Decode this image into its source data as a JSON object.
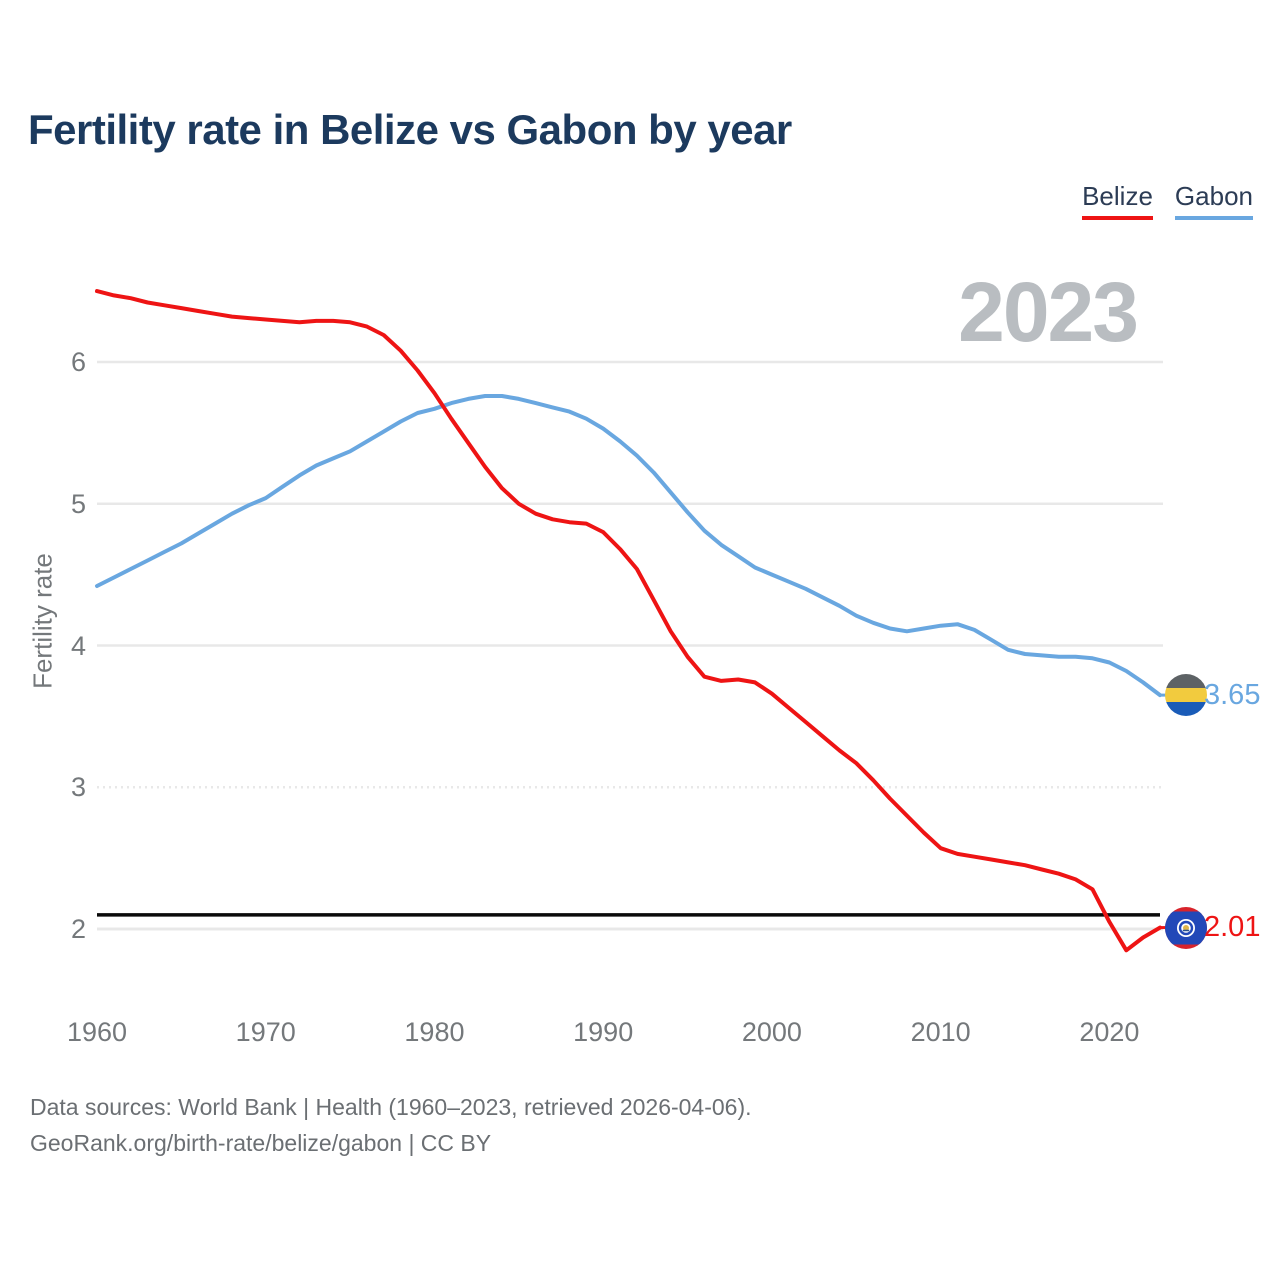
{
  "chart_data": {
    "type": "line",
    "title": "Fertility rate in Belize vs Gabon by year",
    "xlabel": "",
    "ylabel": "Fertility rate",
    "watermark": "2023",
    "xlim": [
      1960,
      2023
    ],
    "ylim": [
      1.7,
      6.65
    ],
    "x_ticks": [
      1960,
      1970,
      1980,
      1990,
      2000,
      2010,
      2020
    ],
    "y_ticks": [
      2,
      3,
      4,
      5,
      6
    ],
    "grid": "horizontal",
    "legend_position": "top-right",
    "reference_line": {
      "value": 2.1,
      "color": "#0a0a0a"
    },
    "x": [
      1960,
      1961,
      1962,
      1963,
      1964,
      1965,
      1966,
      1967,
      1968,
      1969,
      1970,
      1971,
      1972,
      1973,
      1974,
      1975,
      1976,
      1977,
      1978,
      1979,
      1980,
      1981,
      1982,
      1983,
      1984,
      1985,
      1986,
      1987,
      1988,
      1989,
      1990,
      1991,
      1992,
      1993,
      1994,
      1995,
      1996,
      1997,
      1998,
      1999,
      2000,
      2001,
      2002,
      2003,
      2004,
      2005,
      2006,
      2007,
      2008,
      2009,
      2010,
      2011,
      2012,
      2013,
      2014,
      2015,
      2016,
      2017,
      2018,
      2019,
      2020,
      2021,
      2022,
      2023
    ],
    "series": [
      {
        "name": "Belize",
        "color": "#ee1414",
        "end_label": "2.01",
        "flag_icon": "belize-flag-icon",
        "values": [
          6.5,
          6.47,
          6.45,
          6.42,
          6.4,
          6.38,
          6.36,
          6.34,
          6.32,
          6.31,
          6.3,
          6.29,
          6.28,
          6.29,
          6.29,
          6.28,
          6.25,
          6.19,
          6.08,
          5.94,
          5.78,
          5.6,
          5.43,
          5.26,
          5.11,
          5.0,
          4.93,
          4.89,
          4.87,
          4.86,
          4.8,
          4.68,
          4.54,
          4.32,
          4.1,
          3.92,
          3.78,
          3.75,
          3.76,
          3.74,
          3.66,
          3.56,
          3.46,
          3.36,
          3.26,
          3.17,
          3.05,
          2.92,
          2.8,
          2.68,
          2.57,
          2.53,
          2.51,
          2.49,
          2.47,
          2.45,
          2.42,
          2.39,
          2.35,
          2.28,
          2.05,
          1.85,
          1.94,
          2.01
        ]
      },
      {
        "name": "Gabon",
        "color": "#69a7e0",
        "end_label": "3.65",
        "flag_icon": "gabon-flag-icon",
        "values": [
          4.42,
          4.48,
          4.54,
          4.6,
          4.66,
          4.72,
          4.79,
          4.86,
          4.93,
          4.99,
          5.04,
          5.12,
          5.2,
          5.27,
          5.32,
          5.37,
          5.44,
          5.51,
          5.58,
          5.64,
          5.67,
          5.71,
          5.74,
          5.76,
          5.76,
          5.74,
          5.71,
          5.68,
          5.65,
          5.6,
          5.53,
          5.44,
          5.34,
          5.22,
          5.08,
          4.94,
          4.81,
          4.71,
          4.63,
          4.55,
          4.5,
          4.45,
          4.4,
          4.34,
          4.28,
          4.21,
          4.16,
          4.12,
          4.1,
          4.12,
          4.14,
          4.15,
          4.11,
          4.04,
          3.97,
          3.94,
          3.93,
          3.92,
          3.92,
          3.91,
          3.88,
          3.82,
          3.74,
          3.65
        ]
      }
    ]
  },
  "footer": {
    "line1": "Data sources: World Bank | Health (1960–2023, retrieved 2026-04-06).",
    "line2": "GeoRank.org/birth-rate/belize/gabon | CC BY"
  }
}
